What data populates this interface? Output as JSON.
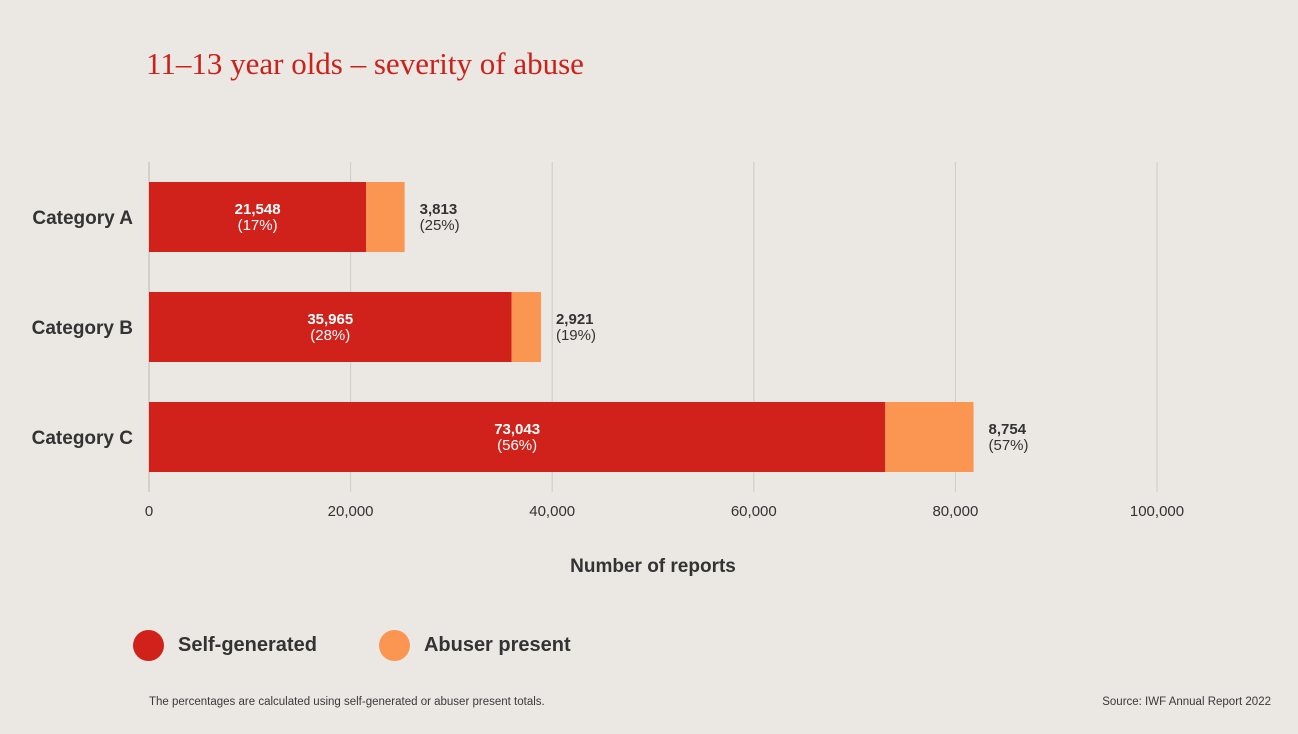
{
  "colors": {
    "background": "#ebe7e2",
    "self_generated": "#d0211a",
    "abuser_present": "#fb9652",
    "title": "#cc211b",
    "text": "#333333",
    "grid": "#cfcbc6"
  },
  "chart_data": {
    "type": "bar",
    "orientation": "horizontal",
    "stacked": true,
    "title": "11–13 year olds – severity of abuse",
    "xlabel": "Number of reports",
    "ylabel": "",
    "xlim": [
      0,
      100000
    ],
    "x_ticks": [
      0,
      20000,
      40000,
      60000,
      80000,
      100000
    ],
    "x_tick_labels": [
      "0",
      "20,000",
      "40,000",
      "60,000",
      "80,000",
      "100,000"
    ],
    "grid": "vertical",
    "legend_position": "bottom-left",
    "categories": [
      "Category A",
      "Category B",
      "Category C"
    ],
    "series": [
      {
        "name": "Self-generated",
        "color": "#d0211a",
        "values": [
          21548,
          35965,
          73043
        ],
        "value_labels": [
          "21,548",
          "35,965",
          "73,043"
        ],
        "percent_labels": [
          "(17%)",
          "(28%)",
          "(56%)"
        ]
      },
      {
        "name": "Abuser present",
        "color": "#fb9652",
        "values": [
          3813,
          2921,
          8754
        ],
        "value_labels": [
          "3,813",
          "2,921",
          "8,754"
        ],
        "percent_labels": [
          "(25%)",
          "(19%)",
          "(57%)"
        ]
      }
    ]
  },
  "footnote": "The percentages are calculated using self-generated or abuser present totals.",
  "source": "Source: IWF Annual Report 2022"
}
